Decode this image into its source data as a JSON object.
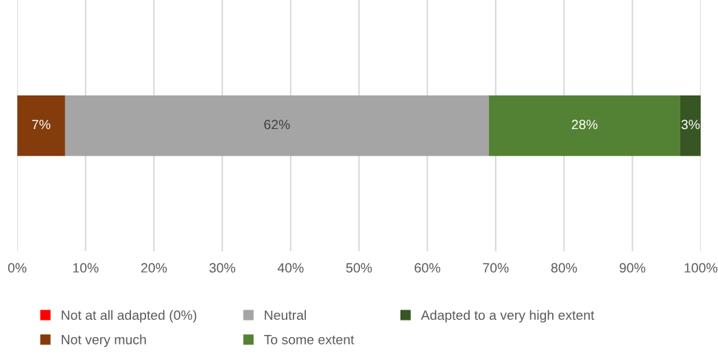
{
  "chart_data": {
    "type": "bar",
    "orientation": "horizontal",
    "stacked": true,
    "categories": [
      null
    ],
    "series": [
      {
        "name": "Not at all adapted (0%)",
        "color": "#ff0000",
        "values": [
          0
        ],
        "value_labels": [
          null
        ]
      },
      {
        "name": "Not very much",
        "color": "#843c0c",
        "values": [
          7
        ],
        "value_labels": [
          "7%"
        ]
      },
      {
        "name": "Neutral",
        "color": "#a5a5a5",
        "values": [
          62
        ],
        "value_labels": [
          "62%"
        ]
      },
      {
        "name": "To some extent",
        "color": "#548235",
        "values": [
          28
        ],
        "value_labels": [
          "28%"
        ]
      },
      {
        "name": "Adapted to a very high extent",
        "color": "#375623",
        "values": [
          3
        ],
        "value_labels": [
          "3%"
        ]
      }
    ],
    "xlim": [
      0,
      100
    ],
    "xticks": [
      {
        "value": 0,
        "label": "0%"
      },
      {
        "value": 10,
        "label": "10%"
      },
      {
        "value": 20,
        "label": "20%"
      },
      {
        "value": 30,
        "label": "30%"
      },
      {
        "value": 40,
        "label": "40%"
      },
      {
        "value": 50,
        "label": "50%"
      },
      {
        "value": 60,
        "label": "60%"
      },
      {
        "value": 70,
        "label": "70%"
      },
      {
        "value": 80,
        "label": "80%"
      },
      {
        "value": 90,
        "label": "90%"
      },
      {
        "value": 100,
        "label": "100%"
      }
    ],
    "grid": "x",
    "legend": "bottom",
    "tick_labels": "x"
  }
}
